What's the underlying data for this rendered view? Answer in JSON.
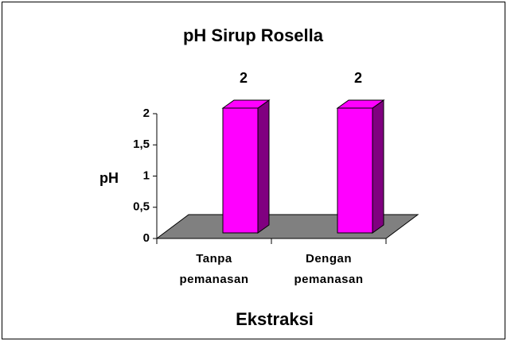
{
  "chart_data": {
    "type": "bar3d",
    "title": "pH Sirup Rosella",
    "categories": [
      "Tanpa pemanasan",
      "Dengan pemanasan"
    ],
    "values": [
      2,
      2
    ],
    "color": "#ff00ff",
    "side_color": "#800080",
    "floor_color": "#808080",
    "ylim": [
      0,
      2
    ],
    "yticks": [
      0,
      {
        "value": 0.5,
        "label": "0,5"
      },
      1,
      {
        "value": 1.5,
        "label": "1,5"
      },
      2
    ],
    "ylabel": "pH",
    "xlabel": "Ekstraksi"
  }
}
